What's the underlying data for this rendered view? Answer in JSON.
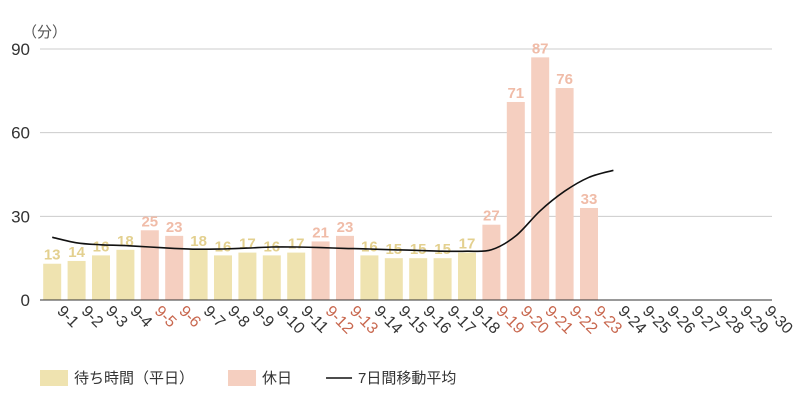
{
  "chart_data": {
    "type": "bar",
    "unit_label": "（分）",
    "ylim": [
      0,
      90
    ],
    "yticks": [
      0,
      30,
      60,
      90
    ],
    "grid": true,
    "categories": [
      "9-1",
      "9-2",
      "9-3",
      "9-4",
      "9-5",
      "9-6",
      "9-7",
      "9-8",
      "9-9",
      "9-10",
      "9-11",
      "9-12",
      "9-13",
      "9-14",
      "9-15",
      "9-16",
      "9-17",
      "9-18",
      "9-19",
      "9-20",
      "9-21",
      "9-22",
      "9-23",
      "9-24",
      "9-25",
      "9-26",
      "9-27",
      "9-28",
      "9-29",
      "9-30"
    ],
    "values": [
      13,
      14,
      16,
      18,
      25,
      23,
      18,
      16,
      17,
      16,
      17,
      21,
      23,
      16,
      15,
      15,
      15,
      17,
      27,
      71,
      87,
      76,
      33,
      null,
      null,
      null,
      null,
      null,
      null,
      null
    ],
    "holiday": [
      false,
      false,
      false,
      false,
      true,
      true,
      false,
      false,
      false,
      false,
      false,
      true,
      true,
      false,
      false,
      false,
      false,
      false,
      true,
      true,
      true,
      true,
      true,
      false,
      false,
      false,
      false,
      false,
      false,
      false
    ],
    "moving_average": [
      22.5,
      20.5,
      19.8,
      19.5,
      19.0,
      18.5,
      18.2,
      18.3,
      18.6,
      19.0,
      19.0,
      18.8,
      18.5,
      18.3,
      18.0,
      17.8,
      17.5,
      17.5,
      18.0,
      23.0,
      32.0,
      39.0,
      44.0,
      46.5,
      null,
      null,
      null,
      null,
      null,
      null
    ],
    "colors": {
      "weekday_bar": "#efe3b0",
      "holiday_bar": "#f5cfc0",
      "weekday_label": "#e3d08f",
      "holiday_label": "#f0bca8",
      "weekday_tick": "#333333",
      "holiday_tick": "#c8674e",
      "line": "#111111",
      "grid": "#cccccc"
    },
    "legend": [
      {
        "label": "待ち時間（平日）",
        "kind": "weekday"
      },
      {
        "label": "休日",
        "kind": "holiday"
      },
      {
        "label": "7日間移動平均",
        "kind": "line"
      }
    ]
  }
}
